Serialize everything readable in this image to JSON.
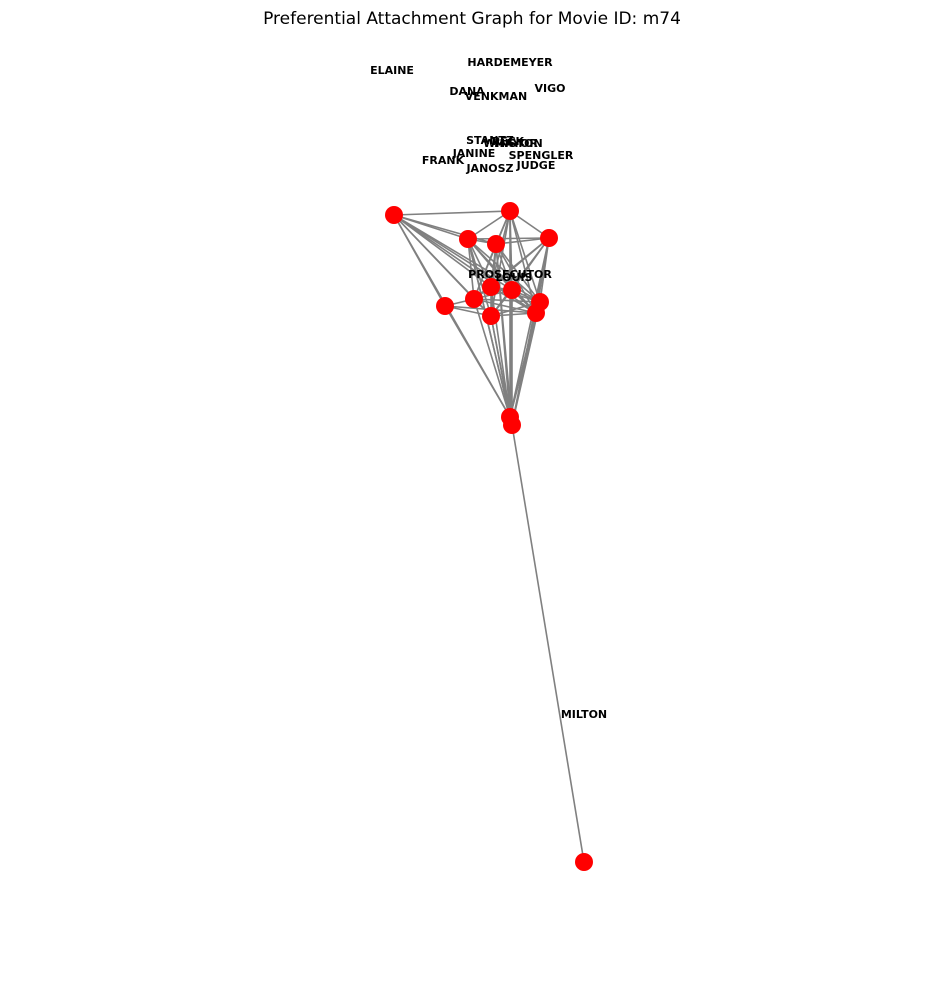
{
  "title": "Preferential Attachment Graph for Movie ID: m74",
  "colors": {
    "node": "#ff0000",
    "edge": "#808080",
    "label": "#000000",
    "background": "#ffffff"
  },
  "chart_data": {
    "type": "network",
    "labels": [
      "HARDEMEYER",
      "ELAINE",
      "VIGO",
      "DANA",
      "VENKMAN",
      "STANTZ",
      "PECK",
      "WINSTON",
      "MAYOR",
      "JANINE",
      "SPENGLER",
      "FRANK",
      "JANOSZ",
      "JUDGE",
      "PROSECUTOR",
      "LOUIS",
      "MILTON"
    ],
    "node_count": 17
  }
}
